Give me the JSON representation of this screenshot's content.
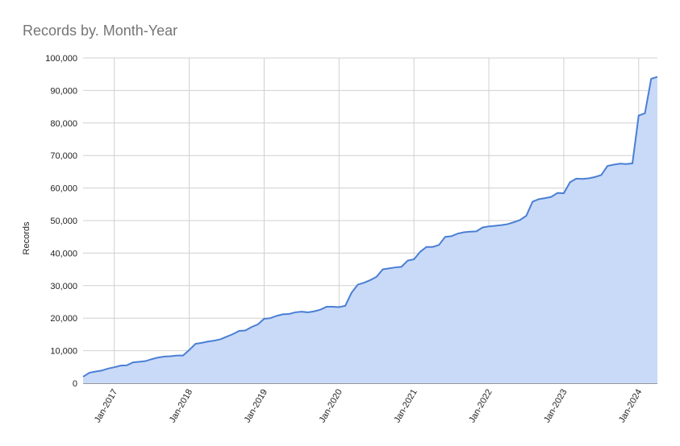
{
  "chart_data": {
    "type": "area",
    "title": "Records by. Month-Year",
    "y_label": "Records",
    "categories": [
      null,
      null,
      null,
      null,
      null,
      "Jan-2017",
      null,
      null,
      null,
      null,
      null,
      null,
      null,
      null,
      null,
      null,
      null,
      "Jan-2018",
      null,
      null,
      null,
      null,
      null,
      null,
      null,
      null,
      null,
      null,
      null,
      "Jan-2019",
      null,
      null,
      null,
      null,
      null,
      null,
      null,
      null,
      null,
      null,
      null,
      "Jan-2020",
      null,
      null,
      null,
      null,
      null,
      null,
      null,
      null,
      null,
      null,
      null,
      "Jan-2021",
      null,
      null,
      null,
      null,
      null,
      null,
      null,
      null,
      null,
      null,
      null,
      "Jan-2022",
      null,
      null,
      null,
      null,
      null,
      null,
      null,
      null,
      null,
      null,
      null,
      "Jan-2023",
      null,
      null,
      null,
      null,
      null,
      null,
      null,
      null,
      null,
      null,
      null,
      "Jan-2024",
      null,
      null,
      null
    ],
    "values": [
      2000,
      3200,
      3600,
      3900,
      4500,
      4900,
      5400,
      5500,
      6400,
      6600,
      6800,
      7400,
      7900,
      8200,
      8300,
      8500,
      8500,
      10200,
      12100,
      12400,
      12800,
      13100,
      13500,
      14300,
      15100,
      16100,
      16200,
      17300,
      18100,
      19800,
      20000,
      20700,
      21200,
      21300,
      21800,
      22000,
      21800,
      22100,
      22600,
      23500,
      23500,
      23400,
      23800,
      27800,
      30300,
      30900,
      31700,
      32700,
      35000,
      35300,
      35600,
      35800,
      37700,
      38100,
      40400,
      41900,
      41900,
      42500,
      45000,
      45200,
      46000,
      46400,
      46600,
      46700,
      47900,
      48200,
      48400,
      48600,
      48900,
      49500,
      50200,
      51500,
      55800,
      56600,
      56900,
      57300,
      58500,
      58400,
      61800,
      62900,
      62800,
      63000,
      63400,
      64000,
      66800,
      67200,
      67500,
      67400,
      67600,
      82300,
      83000,
      93600,
      94200
    ],
    "color": "#4a7fd4",
    "fill_color": "#c9daf8",
    "ylim": [
      0,
      100000
    ],
    "yticks": [
      0,
      {
        "value": 10000,
        "label": "10,000"
      },
      {
        "value": 20000,
        "label": "20,000"
      },
      {
        "value": 30000,
        "label": "30,000"
      },
      {
        "value": 40000,
        "label": "40,000"
      },
      {
        "value": 50000,
        "label": "50,000"
      },
      {
        "value": 60000,
        "label": "60,000"
      },
      {
        "value": 70000,
        "label": "70,000"
      },
      {
        "value": 80000,
        "label": "80,000"
      },
      {
        "value": 90000,
        "label": "90,000"
      },
      {
        "value": 100000,
        "label": "100,000"
      }
    ],
    "grid": true
  }
}
